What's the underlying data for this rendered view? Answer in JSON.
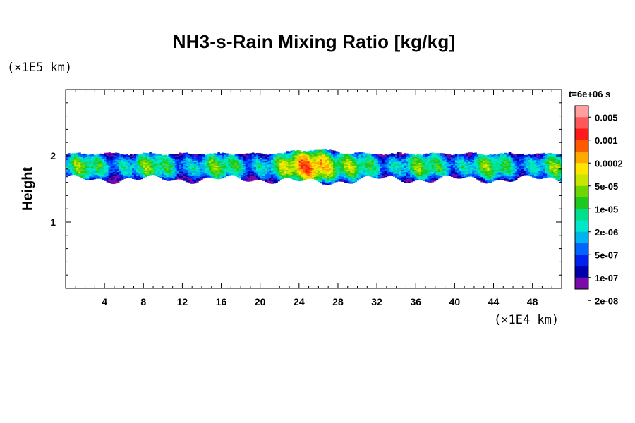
{
  "chart_data": {
    "type": "heatmap",
    "title": "NH3-s-Rain Mixing Ratio [kg/kg]",
    "xlabel": "",
    "ylabel": "Height",
    "x_unit": "(×1E4 km)",
    "y_unit": "(×1E5 km)",
    "time_label": "t=6e+06 s",
    "xlim": [
      0,
      51
    ],
    "ylim": [
      0,
      3
    ],
    "x_ticks": [
      4,
      8,
      12,
      16,
      20,
      24,
      28,
      32,
      36,
      40,
      44,
      48
    ],
    "y_ticks": [
      1,
      2
    ],
    "colorbar": {
      "labels": [
        "0.005",
        "0.001",
        "0.0002",
        "5e-05",
        "1e-05",
        "2e-06",
        "5e-07",
        "1e-07",
        "2e-08"
      ],
      "colors": [
        "#ff9f9f",
        "#ff5858",
        "#ff1a1a",
        "#ff5a00",
        "#ffaa00",
        "#ffe600",
        "#c8e600",
        "#6ed600",
        "#1ec81e",
        "#00e08c",
        "#00e8c8",
        "#00b4f0",
        "#0064ff",
        "#0022ee",
        "#0000aa",
        "#7a0aaa"
      ]
    },
    "cloud_layer": {
      "base_height": 1.65,
      "top_height": 2.02,
      "max_at_x": 25.5
    }
  }
}
